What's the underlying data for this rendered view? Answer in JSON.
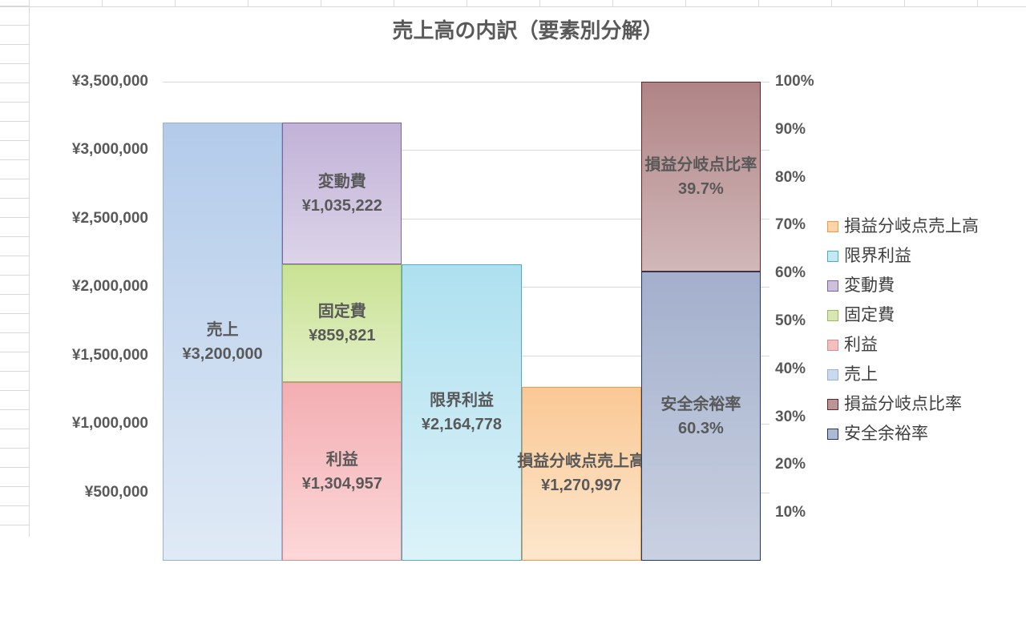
{
  "chart_data": {
    "type": "bar",
    "title": "売上高の内訳（要素別分解）",
    "legend_position": "right",
    "gridlines": true,
    "left_axis": {
      "min": 0,
      "max": 3500000,
      "interval": 500000,
      "unit": "¥",
      "ticks": [
        {
          "label": "¥3,500,000",
          "value": 3500000
        },
        {
          "label": "¥3,000,000",
          "value": 3000000
        },
        {
          "label": "¥2,500,000",
          "value": 2500000
        },
        {
          "label": "¥2,000,000",
          "value": 2000000
        },
        {
          "label": "¥1,500,000",
          "value": 1500000
        },
        {
          "label": "¥1,000,000",
          "value": 1000000
        },
        {
          "label": "¥500,000",
          "value": 500000
        }
      ]
    },
    "right_axis": {
      "min": 0,
      "max": 100,
      "interval": 10,
      "unit": "%",
      "ticks": [
        {
          "label": "100%",
          "value": 100
        },
        {
          "label": "90%",
          "value": 90
        },
        {
          "label": "80%",
          "value": 80
        },
        {
          "label": "70%",
          "value": 70
        },
        {
          "label": "60%",
          "value": 60
        },
        {
          "label": "50%",
          "value": 50
        },
        {
          "label": "40%",
          "value": 40
        },
        {
          "label": "30%",
          "value": 30
        },
        {
          "label": "20%",
          "value": 20
        },
        {
          "label": "10%",
          "value": 10
        }
      ]
    },
    "bars": [
      {
        "axis": "yen",
        "segments": [
          {
            "key": "uriage",
            "name": "売上",
            "value": 3200000,
            "value_label": "¥3,200,000"
          }
        ]
      },
      {
        "axis": "yen",
        "segments": [
          {
            "key": "rieki",
            "name": "利益",
            "value": 1304957,
            "value_label": "¥1,304,957"
          },
          {
            "key": "kotei",
            "name": "固定費",
            "value": 859821,
            "value_label": "¥859,821"
          },
          {
            "key": "hendo",
            "name": "変動費",
            "value": 1035222,
            "value_label": "¥1,035,222"
          }
        ]
      },
      {
        "axis": "yen",
        "segments": [
          {
            "key": "genkai",
            "name": "限界利益",
            "value": 2164778,
            "value_label": "¥2,164,778"
          }
        ]
      },
      {
        "axis": "yen",
        "segments": [
          {
            "key": "soneki_uriage",
            "name": "損益分岐点売上高",
            "value": 1270997,
            "value_label": "¥1,270,997"
          }
        ]
      },
      {
        "axis": "percent",
        "segments": [
          {
            "key": "anzen",
            "name": "安全余裕率",
            "value": 60.3,
            "value_label": "60.3%"
          },
          {
            "key": "soneki_hiritsu",
            "name": "損益分岐点比率",
            "value": 39.7,
            "value_label": "39.7%"
          }
        ]
      }
    ],
    "legend": [
      {
        "key": "soneki_uriage",
        "label": "損益分岐点売上高"
      },
      {
        "key": "genkai",
        "label": "限界利益"
      },
      {
        "key": "hendo",
        "label": "変動費"
      },
      {
        "key": "kotei",
        "label": "固定費"
      },
      {
        "key": "rieki",
        "label": "利益"
      },
      {
        "key": "uriage",
        "label": "売上"
      },
      {
        "key": "soneki_hiritsu",
        "label": "損益分岐点比率"
      },
      {
        "key": "anzen",
        "label": "安全余裕率"
      }
    ],
    "colors": {
      "uriage": {
        "top": "#b3cbea",
        "bottom": "#e0eaf6",
        "border": "#95b3d7",
        "swatch": "#c9d9ef"
      },
      "rieki": {
        "top": "#f3aeb2",
        "bottom": "#fcd7d9",
        "border": "#d08e8d",
        "swatch": "#f3bfbe"
      },
      "kotei": {
        "top": "#c9e293",
        "bottom": "#e2efc6",
        "border": "#9bbb59",
        "swatch": "#d7e6b2"
      },
      "hendo": {
        "top": "#c1b2d7",
        "bottom": "#dcd4e9",
        "border": "#8064a2",
        "swatch": "#ccc1da"
      },
      "genkai": {
        "top": "#aee0ef",
        "bottom": "#dcf2f9",
        "border": "#4bacc6",
        "swatch": "#c5e9f3"
      },
      "soneki_uriage": {
        "top": "#fac895",
        "bottom": "#fde7cd",
        "border": "#f79646",
        "swatch": "#fcd5ad"
      },
      "soneki_hiritsu": {
        "top": "#b08486",
        "bottom": "#d2b8b9",
        "border": "#622827",
        "swatch": "#bb9595"
      },
      "anzen": {
        "top": "#a3afcc",
        "bottom": "#c9d1e1",
        "border": "#1f3864",
        "swatch": "#aeb9d2"
      }
    }
  }
}
